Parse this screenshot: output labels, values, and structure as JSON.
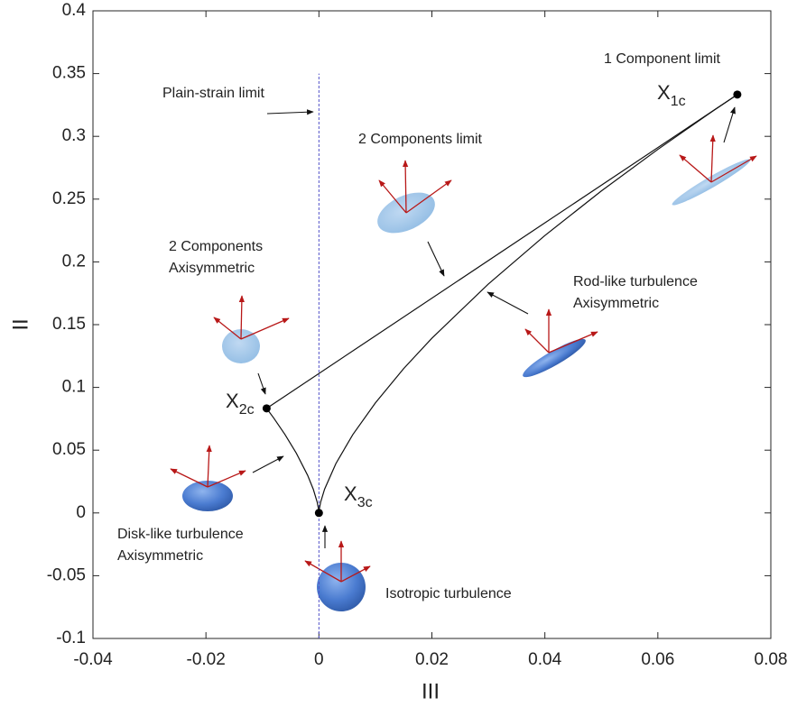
{
  "chart_data": {
    "type": "line",
    "x_label": "III",
    "y_label": "II",
    "xlim": [
      -0.04,
      0.08
    ],
    "ylim": [
      -0.1,
      0.4
    ],
    "xticks": [
      -0.04,
      -0.02,
      0,
      0.02,
      0.04,
      0.06,
      0.08
    ],
    "yticks": [
      -0.1,
      -0.05,
      0,
      0.05,
      0.1,
      0.15,
      0.2,
      0.25,
      0.3,
      0.35,
      0.4
    ],
    "series": [
      {
        "type": "line",
        "color": "#111111",
        "x": [
          -0.00926,
          0.07407
        ],
        "values": [
          0.0833,
          0.3333
        ]
      },
      {
        "type": "line",
        "color": "#111111",
        "x": [
          -0.00926,
          -0.008,
          -0.006,
          -0.004,
          -0.002,
          -0.001,
          -0.0003,
          -5e-05,
          0
        ],
        "values": [
          0.0833,
          0.0756,
          0.0624,
          0.0476,
          0.03,
          0.0189,
          0.0085,
          0.0026,
          0
        ]
      },
      {
        "type": "line",
        "color": "#111111",
        "x": [
          0,
          5e-05,
          0.0003,
          0.001,
          0.003,
          0.006,
          0.01,
          0.015,
          0.02,
          0.03,
          0.04,
          0.05,
          0.06,
          0.07,
          0.07407
        ],
        "values": [
          0,
          0.0026,
          0.0085,
          0.0189,
          0.0393,
          0.0624,
          0.0877,
          0.115,
          0.1392,
          0.1824,
          0.221,
          0.2565,
          0.2896,
          0.321,
          0.3333
        ]
      },
      {
        "type": "scatter",
        "color": "#000000",
        "x": [
          0.07407,
          -0.00926,
          0
        ],
        "values": [
          0.3333,
          0.0833,
          0
        ],
        "point_labels": [
          {
            "text": "X",
            "sub": "1c"
          },
          {
            "text": "X",
            "sub": "2c"
          },
          {
            "text": "X",
            "sub": "3c"
          }
        ]
      }
    ],
    "vline": {
      "x": 0,
      "ylim": [
        -0.1,
        0.35
      ],
      "color": "#5050c8",
      "dashed": true
    },
    "annotations": [
      [
        "1 Component limit"
      ],
      [
        "Plain-strain limit"
      ],
      [
        "2 Components limit"
      ],
      [
        "2 Components",
        "Axisymmetric"
      ],
      [
        "Rod-like turbulence",
        "Axisymmetric"
      ],
      [
        "Disk-like turbulence",
        "Axisymmetric"
      ],
      [
        "Isotropic turbulence"
      ]
    ]
  }
}
